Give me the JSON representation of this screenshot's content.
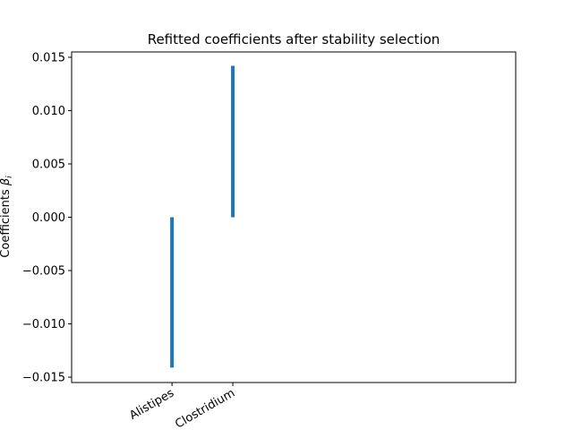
{
  "chart_data": {
    "type": "bar",
    "title": "Refitted coefficients after stability selection",
    "xlabel": "",
    "ylabel": "Coefficients",
    "ylabel_symbol": "β",
    "ylabel_subscript": "i",
    "categories": [
      "Alistipes",
      "Clostridium"
    ],
    "x_positions": [
      0,
      1
    ],
    "values": [
      -0.0141,
      0.0142
    ],
    "bar_color": "#1f77b4",
    "ylim": [
      -0.0155,
      0.0155
    ],
    "xlim": [
      -1.65,
      5.65
    ],
    "yticks": [
      -0.015,
      -0.01,
      -0.005,
      0.0,
      0.005,
      0.01,
      0.015
    ],
    "ytick_labels": [
      "−0.015",
      "−0.010",
      "−0.005",
      "0.000",
      "0.005",
      "0.010",
      "0.015"
    ],
    "grid": false,
    "legend": "none"
  }
}
